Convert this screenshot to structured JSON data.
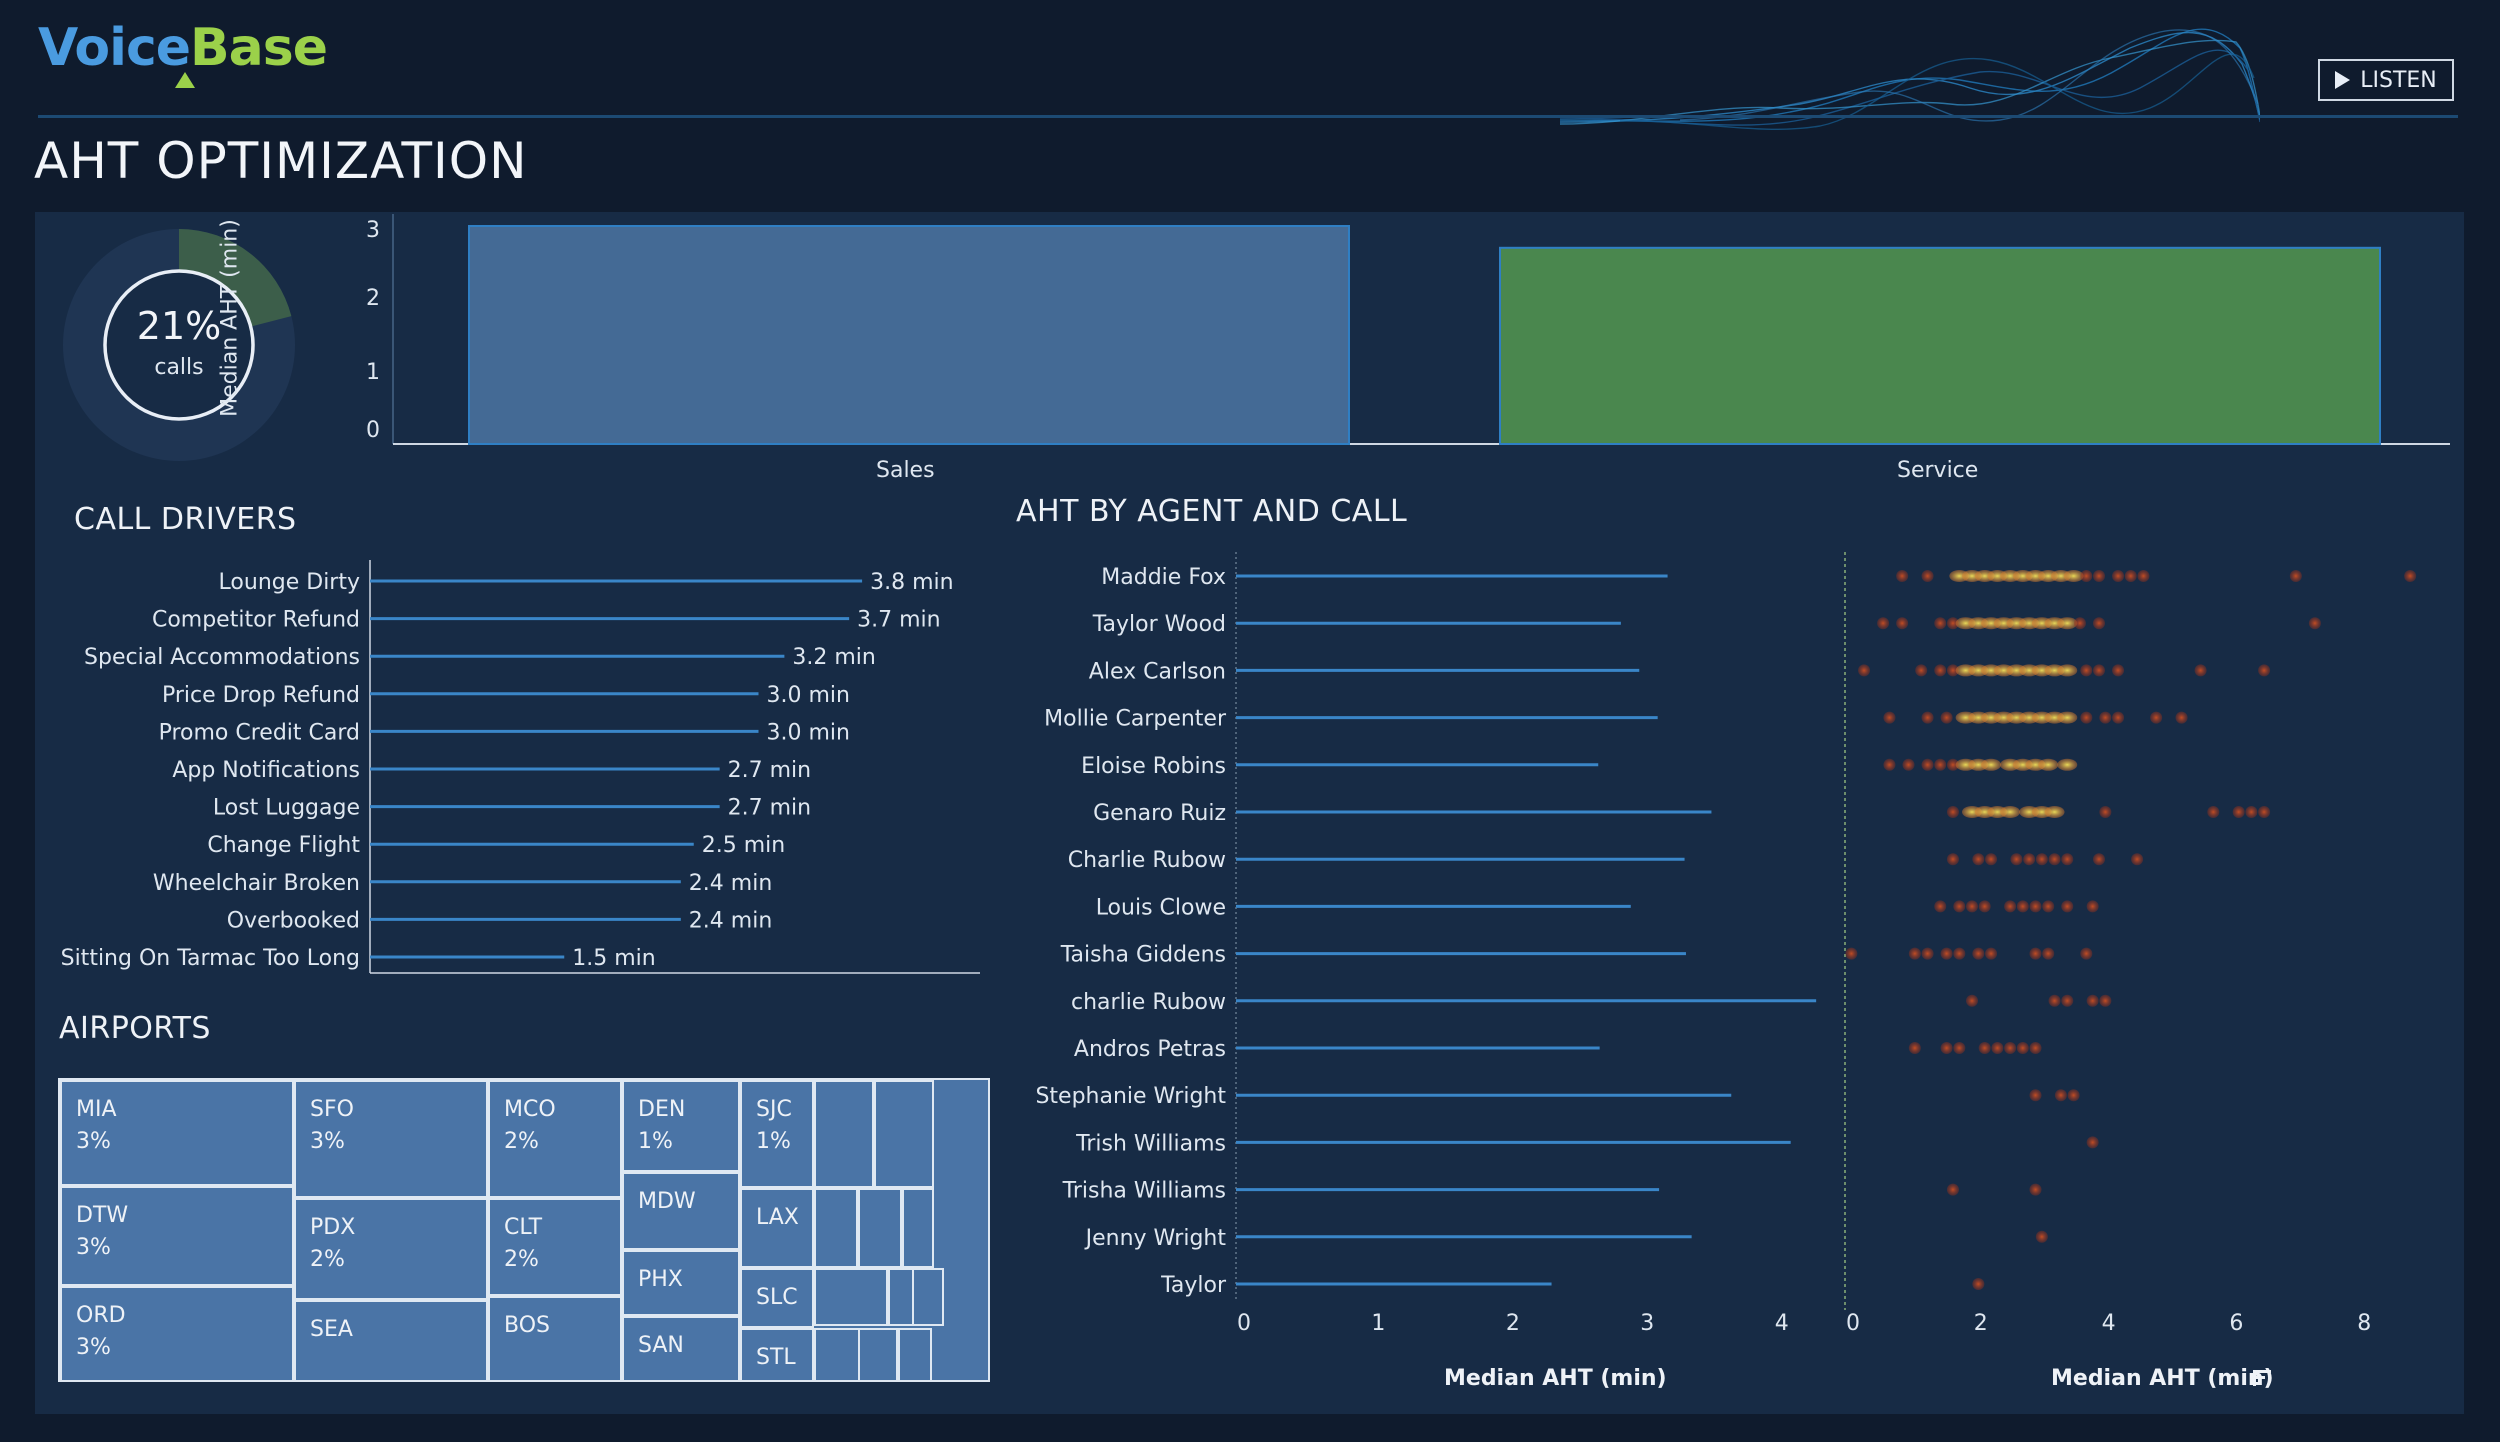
{
  "header": {
    "logo_voice": "Voice",
    "logo_base": "Base",
    "listen_label": "LISTEN",
    "page_title": "AHT OPTIMIZATION"
  },
  "kpi": {
    "value": "21%",
    "label": "calls",
    "fraction": 0.21
  },
  "colors": {
    "background": "#0f1b2d",
    "panel": "#172b45",
    "sales_bar": "#446a95",
    "service_bar": "#4a874e",
    "line": "#3a86c8",
    "treemap": "#4a74a6",
    "accent_green": "#9bd14a"
  },
  "team_chart": {
    "ylabel": "Median AHT (min)",
    "yticks": [
      "0",
      "1",
      "2",
      "3"
    ]
  },
  "call_drivers": {
    "title": "CALL DRIVERS"
  },
  "airports": {
    "title": "AIRPORTS",
    "cells": [
      {
        "code": "MIA",
        "pct": "3%"
      },
      {
        "code": "DTW",
        "pct": "3%"
      },
      {
        "code": "ORD",
        "pct": "3%"
      },
      {
        "code": "SFO",
        "pct": "3%"
      },
      {
        "code": "PDX",
        "pct": "2%"
      },
      {
        "code": "SEA",
        "pct": ""
      },
      {
        "code": "MCO",
        "pct": "2%"
      },
      {
        "code": "CLT",
        "pct": "2%"
      },
      {
        "code": "BOS",
        "pct": ""
      },
      {
        "code": "DEN",
        "pct": "1%"
      },
      {
        "code": "MDW",
        "pct": ""
      },
      {
        "code": "PHX",
        "pct": ""
      },
      {
        "code": "SAN",
        "pct": ""
      },
      {
        "code": "SJC",
        "pct": "1%"
      },
      {
        "code": "LAX",
        "pct": ""
      },
      {
        "code": "SLC",
        "pct": ""
      },
      {
        "code": "STL",
        "pct": ""
      }
    ]
  },
  "agent_chart": {
    "title": "AHT BY AGENT AND CALL",
    "left_xlabel": "Median AHT (min)",
    "right_xlabel": "Median AHT (min)",
    "left_xticks": [
      "0",
      "1",
      "2",
      "3",
      "4"
    ],
    "right_xticks": [
      "0",
      "2",
      "4",
      "6",
      "8"
    ]
  },
  "chart_data": [
    {
      "type": "bar",
      "title": "",
      "ylabel": "Median AHT (min)",
      "categories": [
        "Sales",
        "Service"
      ],
      "values": [
        3.0,
        2.7
      ],
      "ylim": [
        0,
        3.1
      ]
    },
    {
      "type": "bar",
      "title": "CALL DRIVERS",
      "orientation": "horizontal",
      "categories": [
        "Lounge Dirty",
        "Competitor Refund",
        "Special Accommodations",
        "Price Drop Refund",
        "Promo Credit Card",
        "App Notifications",
        "Lost Luggage",
        "Change Flight",
        "Wheelchair Broken",
        "Overbooked",
        "Sitting On Tarmac Too Long"
      ],
      "values": [
        3.8,
        3.7,
        3.2,
        3.0,
        3.0,
        2.7,
        2.7,
        2.5,
        2.4,
        2.4,
        1.5
      ],
      "value_labels": [
        "3.8 min",
        "3.7 min",
        "3.2 min",
        "3.0 min",
        "3.0 min",
        "2.7 min",
        "2.7 min",
        "2.5 min",
        "2.4 min",
        "2.4 min",
        "1.5 min"
      ],
      "xlim": [
        0,
        4.7
      ]
    },
    {
      "type": "bar",
      "title": "AHT BY AGENT AND CALL",
      "orientation": "horizontal",
      "xlabel": "Median AHT (min)",
      "categories": [
        "Maddie Fox",
        "Taylor Wood",
        "Alex Carlson",
        "Mollie Carpenter",
        "Eloise Robins",
        "Genaro Ruiz",
        "Charlie Rubow",
        "Louis Clowe",
        "Taisha Giddens",
        "charlie Rubow",
        "Andros Petras",
        "Stephanie Wright",
        "Trish Williams",
        "Trisha Williams",
        "Jenny Wright",
        "Taylor"
      ],
      "values": [
        3.05,
        2.72,
        2.85,
        2.98,
        2.56,
        3.36,
        3.17,
        2.79,
        3.18,
        4.1,
        2.57,
        3.5,
        3.92,
        2.99,
        3.22,
        2.23
      ],
      "xlim": [
        0,
        4.2
      ]
    },
    {
      "type": "scatter",
      "xlabel": "Median AHT (min)",
      "xlim": [
        0,
        9
      ],
      "categories": [
        "Maddie Fox",
        "Taylor Wood",
        "Alex Carlson",
        "Mollie Carpenter",
        "Eloise Robins",
        "Genaro Ruiz",
        "Charlie Rubow",
        "Louis Clowe",
        "Taisha Giddens",
        "charlie Rubow",
        "Andros Petras",
        "Stephanie Wright",
        "Trish Williams",
        "Trisha Williams",
        "Jenny Wright",
        "Taylor"
      ],
      "points": [
        [
          0.9,
          1.3,
          1.8,
          2.0,
          2.2,
          2.4,
          2.6,
          2.8,
          3.0,
          3.2,
          3.4,
          3.6,
          3.8,
          4.0,
          4.3,
          4.5,
          4.7,
          7.1,
          8.9
        ],
        [
          0.6,
          0.9,
          1.5,
          1.7,
          1.9,
          2.1,
          2.3,
          2.5,
          2.7,
          2.9,
          3.1,
          3.3,
          3.5,
          3.7,
          4.0,
          7.4
        ],
        [
          0.3,
          1.2,
          1.5,
          1.7,
          1.9,
          2.1,
          2.3,
          2.5,
          2.7,
          2.9,
          3.1,
          3.3,
          3.5,
          3.8,
          4.0,
          4.3,
          5.6,
          6.6
        ],
        [
          0.7,
          1.3,
          1.6,
          1.9,
          2.1,
          2.3,
          2.5,
          2.7,
          2.9,
          3.1,
          3.3,
          3.5,
          3.8,
          4.1,
          4.3,
          4.9,
          5.3
        ],
        [
          0.7,
          1.0,
          1.3,
          1.5,
          1.7,
          1.9,
          2.1,
          2.3,
          2.6,
          2.8,
          3.0,
          3.2,
          3.5
        ],
        [
          1.7,
          2.0,
          2.2,
          2.4,
          2.6,
          2.9,
          3.1,
          3.3,
          4.1,
          5.8,
          6.2,
          6.4,
          6.6
        ],
        [
          1.7,
          2.1,
          2.3,
          2.7,
          2.9,
          3.1,
          3.3,
          3.5,
          4.0,
          4.6
        ],
        [
          1.5,
          1.8,
          2.0,
          2.2,
          2.6,
          2.8,
          3.0,
          3.2,
          3.5,
          3.9
        ],
        [
          0.1,
          1.1,
          1.3,
          1.6,
          1.8,
          2.1,
          2.3,
          3.0,
          3.2,
          3.8
        ],
        [
          2.0,
          3.3,
          3.5,
          3.9,
          4.1
        ],
        [
          1.1,
          1.6,
          1.8,
          2.2,
          2.4,
          2.6,
          2.8,
          3.0
        ],
        [
          3.0,
          3.4,
          3.6
        ],
        [
          3.9
        ],
        [
          1.7,
          3.0
        ],
        [
          3.1
        ],
        [
          2.1
        ]
      ]
    }
  ]
}
